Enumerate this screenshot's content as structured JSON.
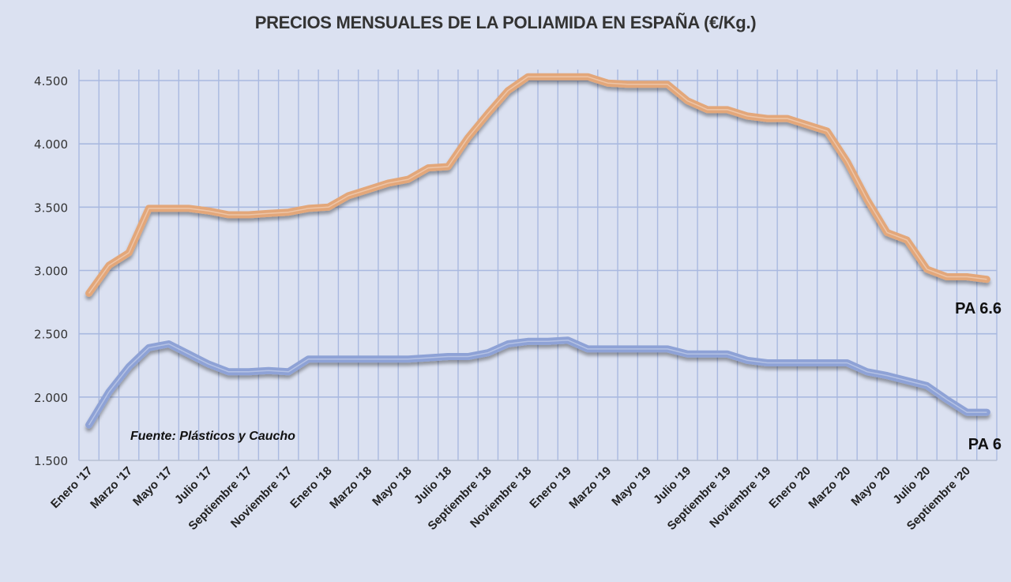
{
  "chart_data": {
    "type": "line",
    "title": "PRECIOS MENSUALES DE LA POLIAMIDA EN ESPAÑA (€/Kg.)",
    "xlabel": "",
    "ylabel": "",
    "ylim": [
      1500,
      4500
    ],
    "yticks": [
      "1.500",
      "2.000",
      "2.500",
      "3.000",
      "3.500",
      "4.000",
      "4.500"
    ],
    "ytick_values": [
      1500,
      2000,
      2500,
      3000,
      3500,
      4000,
      4500
    ],
    "grid": true,
    "x_tick_labels": [
      "Enero '17",
      "Marzo '17",
      "Mayo '17",
      "Julio '17",
      "Septiembre  '17",
      "Noviembre '17",
      "Enero '18",
      "Marzo '18",
      "Mayo '18",
      "Julio '18",
      "Septiembre  '18",
      "Noviembre '18",
      "Enero '19",
      "Marzo '19",
      "Mayo '19",
      "Julio '19",
      "Septiembre '19",
      "Noviembre '19",
      "Enero '20",
      "Marzo '20",
      "Mayo '20",
      "Julio '20",
      "Septiembre '20"
    ],
    "series": [
      {
        "name": "PA 6.6",
        "color": "#e3a77a",
        "values": [
          2820,
          3040,
          3140,
          3490,
          3490,
          3490,
          3470,
          3440,
          3440,
          3450,
          3460,
          3490,
          3500,
          3590,
          3640,
          3690,
          3720,
          3810,
          3820,
          4050,
          4240,
          4420,
          4530,
          4530,
          4530,
          4530,
          4480,
          4470,
          4470,
          4470,
          4340,
          4270,
          4270,
          4220,
          4200,
          4200,
          4150,
          4100,
          3860,
          3560,
          3300,
          3240,
          3010,
          2950,
          2950,
          2930
        ]
      },
      {
        "name": "PA 6",
        "color": "#8ea2d6",
        "values": [
          1780,
          2040,
          2240,
          2390,
          2420,
          2340,
          2260,
          2200,
          2200,
          2210,
          2200,
          2300,
          2300,
          2300,
          2300,
          2300,
          2300,
          2310,
          2320,
          2320,
          2350,
          2420,
          2440,
          2440,
          2450,
          2380,
          2380,
          2380,
          2380,
          2380,
          2340,
          2340,
          2340,
          2290,
          2270,
          2270,
          2270,
          2270,
          2270,
          2200,
          2170,
          2130,
          2090,
          1980,
          1880,
          1880
        ]
      }
    ],
    "annotations": {
      "source": "Fuente: Plásticos  y Caucho"
    },
    "legend": "inline-right"
  },
  "colors": {
    "background": "#dbe1f1",
    "grid": "#a9b9e0"
  }
}
